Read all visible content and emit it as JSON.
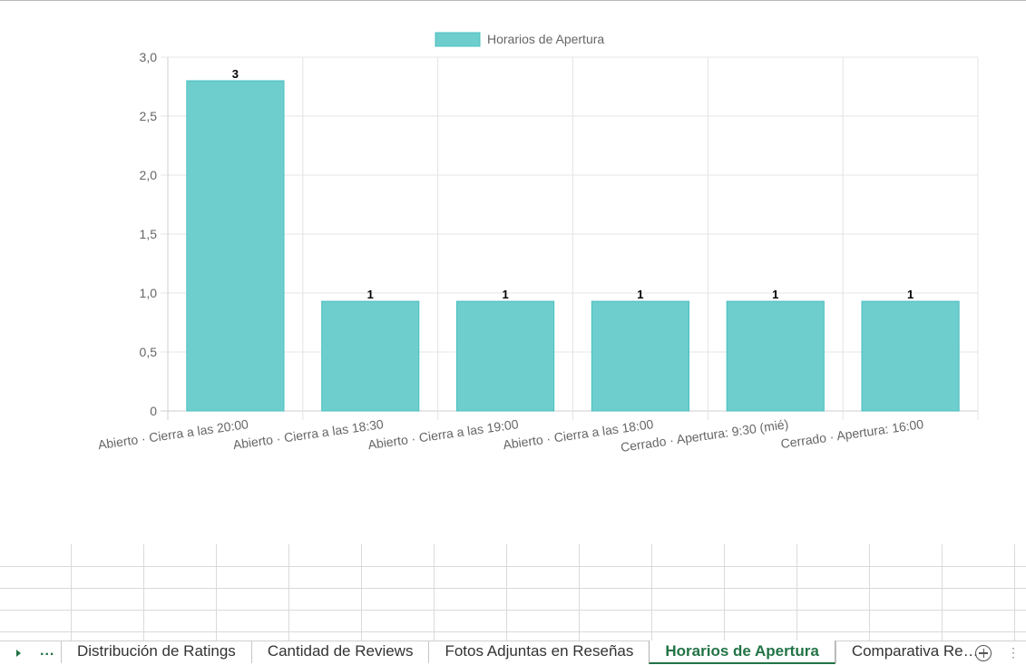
{
  "chart_data": {
    "type": "bar",
    "categories": [
      "Abierto · Cierra a las 20:00",
      "Abierto · Cierra a las 18:30",
      "Abierto · Cierra a las 19:00",
      "Abierto · Cierra a las 18:00",
      "Cerrado · Apertura: 9:30 (mié)",
      "Cerrado · Apertura: 16:00"
    ],
    "series": [
      {
        "name": "Horarios de Apertura",
        "values": [
          2.8,
          0.93,
          0.93,
          0.93,
          0.93,
          0.93
        ]
      }
    ],
    "data_labels": [
      "3",
      "1",
      "1",
      "1",
      "1",
      "1"
    ],
    "y_ticks": [
      "0",
      "0,5",
      "1,0",
      "1,5",
      "2,0",
      "2,5",
      "3,0"
    ],
    "ylim": [
      0,
      3
    ],
    "grid": true,
    "legend_position": "top",
    "colors": {
      "bar_fill": "#6ecdcd",
      "bar_border": "#4bc0c0"
    }
  },
  "sheet_tabs": {
    "more_label": "...",
    "items": [
      {
        "label": "Distribución de Ratings",
        "active": false
      },
      {
        "label": "Cantidad de Reviews",
        "active": false
      },
      {
        "label": "Fotos Adjuntas en Reseñas",
        "active": false
      },
      {
        "label": "Horarios de Apertura",
        "active": true
      },
      {
        "label": "Comparativa Res ...",
        "active": false
      }
    ],
    "options_label": "⋮",
    "accent_color": "#217346"
  }
}
